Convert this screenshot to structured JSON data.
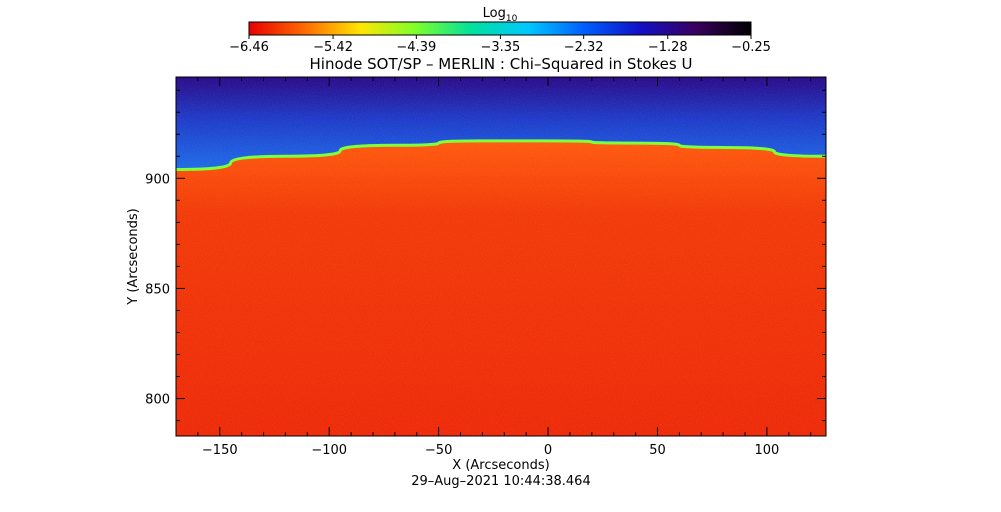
{
  "chart_data": {
    "type": "heatmap",
    "title": "Hinode SOT/SP – MERLIN : Chi–Squared in Stokes U",
    "xlabel": "X (Arcseconds)",
    "ylabel": "Y (Arcseconds)",
    "timestamp": "29–Aug–2021 10:44:38.464",
    "xlim": [
      -170,
      127
    ],
    "ylim": [
      783,
      946
    ],
    "x_ticks": [
      -150,
      -100,
      -50,
      0,
      50,
      100
    ],
    "x_tick_labels": [
      "−150",
      "−100",
      "−50",
      "0",
      "50",
      "100"
    ],
    "y_ticks": [
      800,
      850,
      900
    ],
    "y_tick_labels": [
      "800",
      "850",
      "900"
    ],
    "colorbar": {
      "label_base": "Log",
      "label_sub": "10",
      "range": [
        -6.46,
        -0.25
      ],
      "tick_values": [
        -6.46,
        -5.42,
        -4.39,
        -3.35,
        -2.32,
        -1.28,
        -0.25
      ],
      "tick_labels": [
        "−6.46",
        "−5.42",
        "−4.39",
        "−3.35",
        "−2.32",
        "−1.28",
        "−0.25"
      ],
      "colormap": [
        "#e80000",
        "#ff6a00",
        "#ffe600",
        "#7cff2c",
        "#00e0a0",
        "#00c8ff",
        "#0060ff",
        "#1010c8",
        "#3a0060",
        "#000000"
      ]
    },
    "limb_curve": {
      "x": [
        -170,
        -120,
        -70,
        -30,
        0,
        40,
        80,
        127
      ],
      "y": [
        904,
        910,
        915,
        917,
        917,
        916,
        914,
        910
      ]
    },
    "region_values": {
      "disk": -6.1,
      "limb": -4.0,
      "off_limb_near": -3.0,
      "off_limb_far": -1.6
    }
  }
}
